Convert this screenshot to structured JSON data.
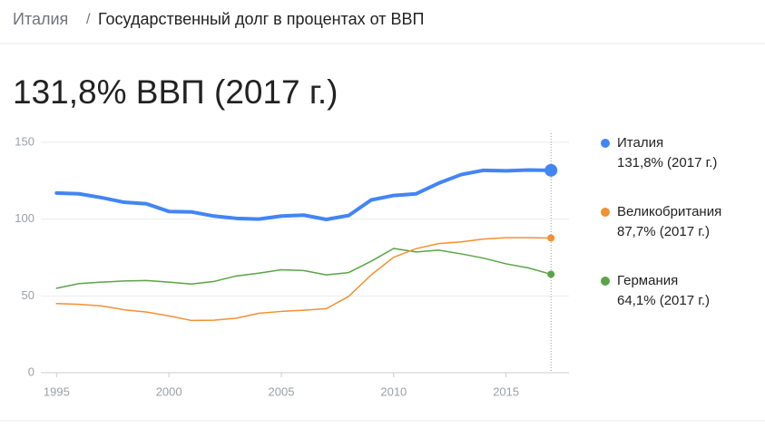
{
  "breadcrumb": {
    "country": "Италия",
    "separator": "/",
    "title": "Государственный долг в процентах от ВВП"
  },
  "headline": "131,8% ВВП (2017 г.)",
  "chart_data": {
    "type": "line",
    "x": [
      1995,
      1996,
      1997,
      1998,
      1999,
      2000,
      2001,
      2002,
      2003,
      2004,
      2005,
      2006,
      2007,
      2008,
      2009,
      2010,
      2011,
      2012,
      2013,
      2014,
      2015,
      2016,
      2017
    ],
    "series": [
      {
        "name": "Италия",
        "color": "#4285f4",
        "value_label": "131,8% (2017 г.)",
        "values": [
          117,
          116.5,
          114,
          111,
          110,
          105,
          104.7,
          102,
          100.5,
          100,
          102,
          102.6,
          99.8,
          102.4,
          112.5,
          115.4,
          116.5,
          123.4,
          129,
          131.8,
          131.5,
          132,
          131.8
        ]
      },
      {
        "name": "Великобритания",
        "color": "#f29033",
        "value_label": "87,7% (2017 г.)",
        "values": [
          45,
          44.5,
          43.5,
          41,
          39.5,
          37,
          34,
          34.2,
          35.5,
          38.7,
          39.9,
          40.7,
          41.7,
          49.7,
          63.7,
          75.2,
          80.8,
          84.1,
          85.2,
          87,
          87.9,
          87.9,
          87.7
        ]
      },
      {
        "name": "Германия",
        "color": "#5aa447",
        "value_label": "64,1% (2017 г.)",
        "values": [
          55,
          58,
          59,
          59.7,
          60,
          59,
          57.7,
          59.4,
          63,
          64.8,
          67,
          66.5,
          63.7,
          65.2,
          72.6,
          80.9,
          78.6,
          79.8,
          77.4,
          74.6,
          70.9,
          68.2,
          64.1
        ]
      }
    ],
    "xlim": [
      1994.3,
      2017.8
    ],
    "xticks": [
      1995,
      2000,
      2005,
      2010,
      2015
    ],
    "ylim": [
      0,
      150
    ],
    "yticks": [
      0,
      50,
      100,
      150
    ],
    "grid": true
  }
}
